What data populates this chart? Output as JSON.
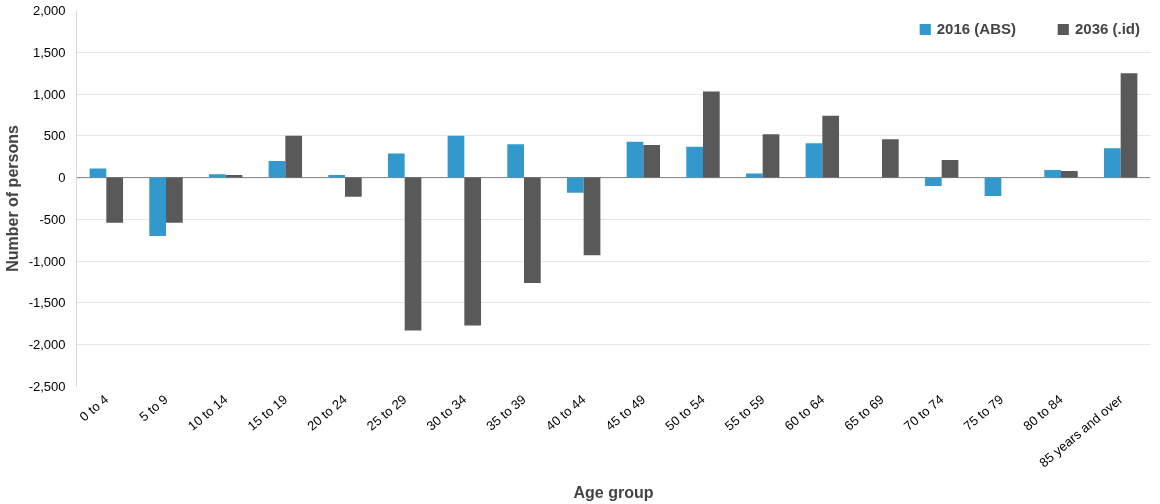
{
  "chart_data": {
    "type": "bar",
    "xlabel": "Age group",
    "ylabel": "Number of persons",
    "categories": [
      "0 to 4",
      "5 to 9",
      "10 to 14",
      "15 to 19",
      "20 to 24",
      "25 to 29",
      "30 to 34",
      "35 to 39",
      "40 to 44",
      "45 to 49",
      "50 to 54",
      "55 to 59",
      "60 to 64",
      "65 to 69",
      "70 to 74",
      "75 to 79",
      "80 to 84",
      "85 years and over"
    ],
    "series": [
      {
        "name": "2016 (ABS)",
        "color": "#3399cc",
        "values": [
          110,
          -700,
          40,
          200,
          30,
          290,
          500,
          400,
          -180,
          430,
          370,
          50,
          410,
          0,
          -100,
          -220,
          90,
          350
        ]
      },
      {
        "name": "2036 (.id)",
        "color": "#595959",
        "values": [
          -540,
          -540,
          30,
          500,
          -230,
          -1830,
          -1770,
          -1260,
          -930,
          390,
          1030,
          520,
          740,
          460,
          210,
          0,
          80,
          1250
        ]
      }
    ],
    "ylim": [
      -2500,
      2000
    ],
    "yticks": [
      {
        "value": -2500,
        "label": "-2,500"
      },
      {
        "value": -2000,
        "label": "-2,000"
      },
      {
        "value": -1500,
        "label": "-1,500"
      },
      {
        "value": -1000,
        "label": "-1,000"
      },
      {
        "value": -500,
        "label": "-500"
      },
      0,
      500,
      {
        "value": 1000,
        "label": "1,000"
      },
      {
        "value": 1500,
        "label": "1,500"
      },
      {
        "value": 2000,
        "label": "2,000"
      }
    ],
    "grid": "y",
    "legend": "top right"
  }
}
